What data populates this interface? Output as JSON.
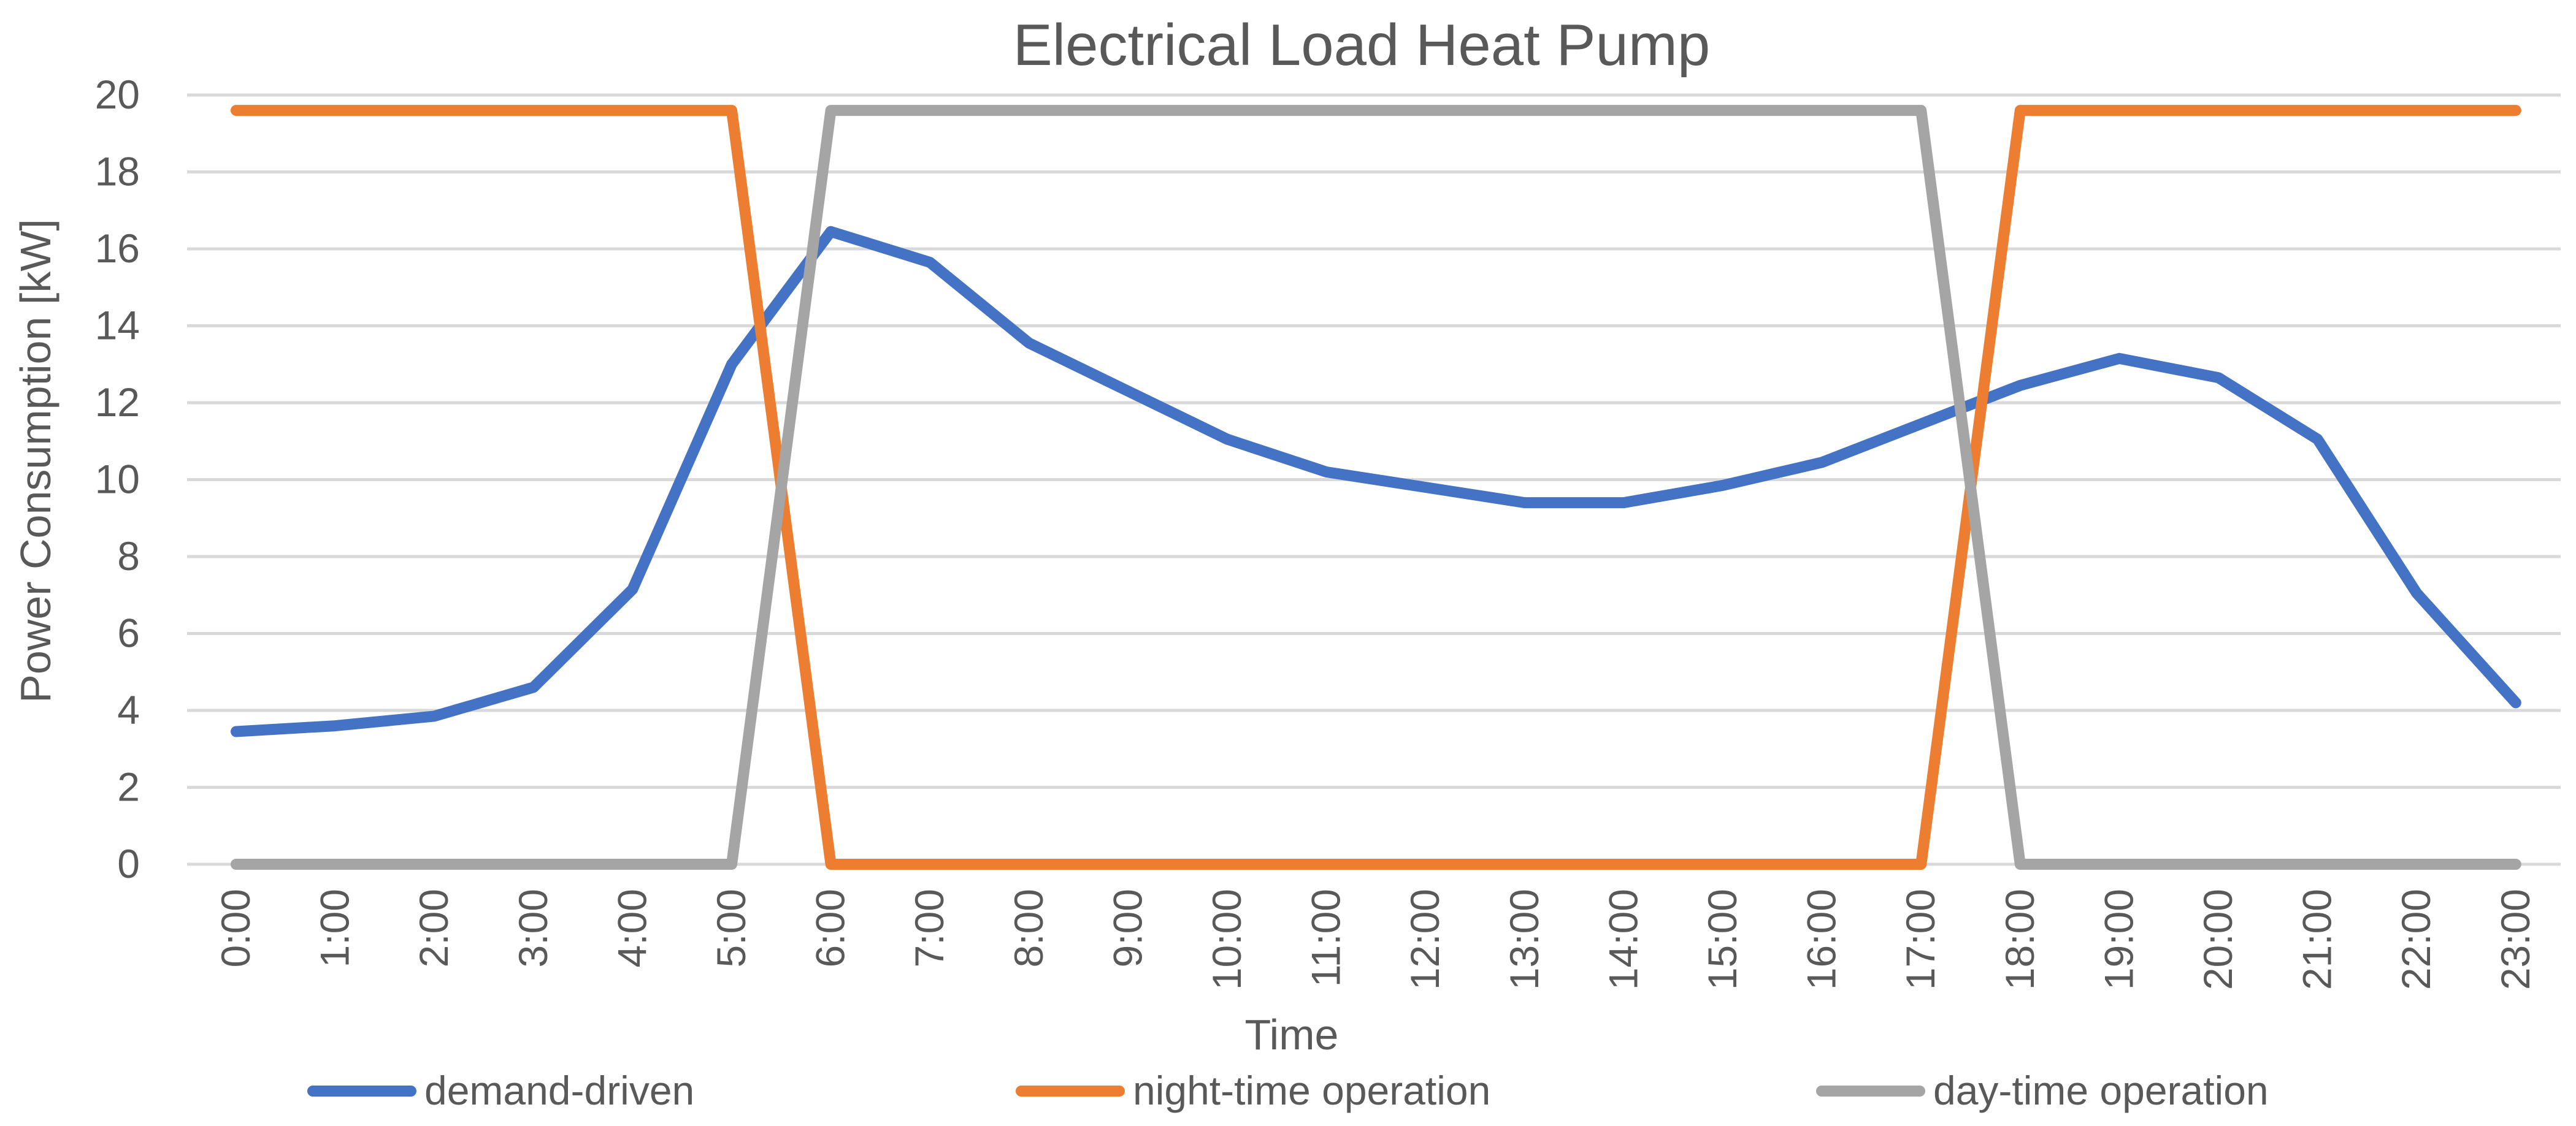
{
  "chart_data": {
    "type": "line",
    "title": "Electrical Load Heat Pump",
    "xlabel": "Time",
    "ylabel": "Power Consumption [kW]",
    "ylim": [
      0,
      20
    ],
    "yticks": [
      0,
      2,
      4,
      6,
      8,
      10,
      12,
      14,
      16,
      18,
      20
    ],
    "grid": true,
    "legend_position": "bottom",
    "categories": [
      "0:00",
      "1:00",
      "2:00",
      "3:00",
      "4:00",
      "5:00",
      "6:00",
      "7:00",
      "8:00",
      "9:00",
      "10:00",
      "11:00",
      "12:00",
      "13:00",
      "14:00",
      "15:00",
      "16:00",
      "17:00",
      "18:00",
      "19:00",
      "20:00",
      "21:00",
      "22:00",
      "23:00"
    ],
    "series": [
      {
        "name": "demand-driven",
        "color": "#4472C4",
        "values": [
          3.45,
          3.6,
          3.85,
          4.6,
          7.15,
          13.0,
          16.45,
          15.65,
          13.55,
          12.3,
          11.05,
          10.2,
          9.8,
          9.4,
          9.4,
          9.85,
          10.45,
          11.45,
          12.45,
          13.15,
          12.65,
          11.05,
          7.05,
          4.2
        ]
      },
      {
        "name": "night-time operation",
        "color": "#ED7D31",
        "values": [
          19.6,
          19.6,
          19.6,
          19.6,
          19.6,
          19.6,
          0,
          0,
          0,
          0,
          0,
          0,
          0,
          0,
          0,
          0,
          0,
          0,
          19.6,
          19.6,
          19.6,
          19.6,
          19.6,
          19.6
        ]
      },
      {
        "name": "day-time operation",
        "color": "#A5A5A5",
        "values": [
          0,
          0,
          0,
          0,
          0,
          0,
          19.6,
          19.6,
          19.6,
          19.6,
          19.6,
          19.6,
          19.6,
          19.6,
          19.6,
          19.6,
          19.6,
          19.6,
          0,
          0,
          0,
          0,
          0,
          0
        ]
      }
    ]
  },
  "colors": {
    "grid": "#D9D9D9",
    "text": "#595959"
  }
}
